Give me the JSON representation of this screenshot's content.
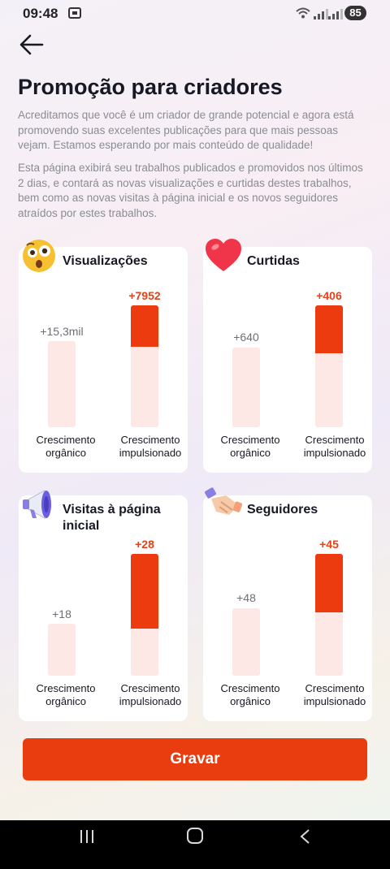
{
  "status_bar": {
    "time": "09:48",
    "battery": "85"
  },
  "page": {
    "title": "Promoção para criadores",
    "description_1": "Acreditamos que você é um criador de grande potencial e agora está promovendo suas excelentes publicações para que mais pessoas vejam. Estamos esperando por mais conteúdo de qualidade!",
    "description_2": "Esta página exibirá seu trabalhos publicados e promovidos nos últimos 2 dias, e contará as novas visualizações e curtidas destes trabalhos, bem como as novas visitas à página inicial e os novos seguidores atraídos por estes trabalhos."
  },
  "labels": {
    "organic": "Crescimento orgânico",
    "boosted": "Crescimento impulsionado"
  },
  "cards": [
    {
      "title": "Visualizações",
      "icon": "surprised-face-emoji",
      "organic_value": "+15,3mil",
      "boosted_value": "+7952",
      "boosted_share": 0.34
    },
    {
      "title": "Curtidas",
      "icon": "heart-emoji",
      "organic_value": "+640",
      "boosted_value": "+406",
      "boosted_share": 0.39
    },
    {
      "title": "Visitas à página inicial",
      "icon": "megaphone-emoji",
      "organic_value": "+18",
      "boosted_value": "+28",
      "boosted_share": 0.61
    },
    {
      "title": "Seguidores",
      "icon": "handshake-emoji",
      "organic_value": "+48",
      "boosted_value": "+45",
      "boosted_share": 0.48
    }
  ],
  "button": {
    "label": "Gravar"
  },
  "colors": {
    "accent": "#ea3d0f",
    "bar_background": "#fde8e5",
    "boost_text": "#e2431b"
  }
}
